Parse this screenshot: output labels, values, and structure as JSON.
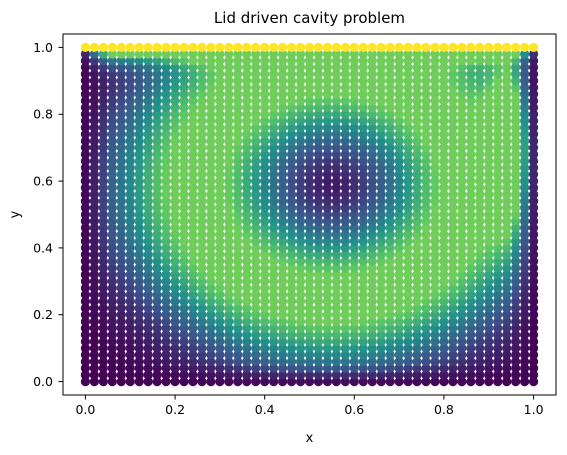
{
  "chart_data": {
    "type": "scatter",
    "title": "Lid driven cavity problem",
    "xlabel": "x",
    "ylabel": "y",
    "xlim": [
      -0.05,
      1.05
    ],
    "ylim": [
      -0.04,
      1.04
    ],
    "xticks": [
      "0.0",
      "0.2",
      "0.4",
      "0.6",
      "0.8",
      "1.0"
    ],
    "yticks": [
      "0.0",
      "0.2",
      "0.4",
      "0.6",
      "0.8",
      "1.0"
    ],
    "xtick_values": [
      0.0,
      0.2,
      0.4,
      0.6,
      0.8,
      1.0
    ],
    "ytick_values": [
      0.0,
      0.2,
      0.4,
      0.6,
      0.8,
      1.0
    ],
    "grid": false,
    "legend": "none",
    "colormap": "viridis",
    "color_scale": [
      "#440154",
      "#3b528b",
      "#21918c",
      "#5ec962",
      "#fde725"
    ],
    "point_grid": {
      "nx": 51,
      "ny": 51,
      "x_range": [
        0.0,
        1.0
      ],
      "y_range": [
        0.0,
        1.0
      ]
    },
    "lid_velocity": 1.0,
    "colored_by": "velocity magnitude",
    "vortex_center": [
      0.55,
      0.59
    ]
  }
}
